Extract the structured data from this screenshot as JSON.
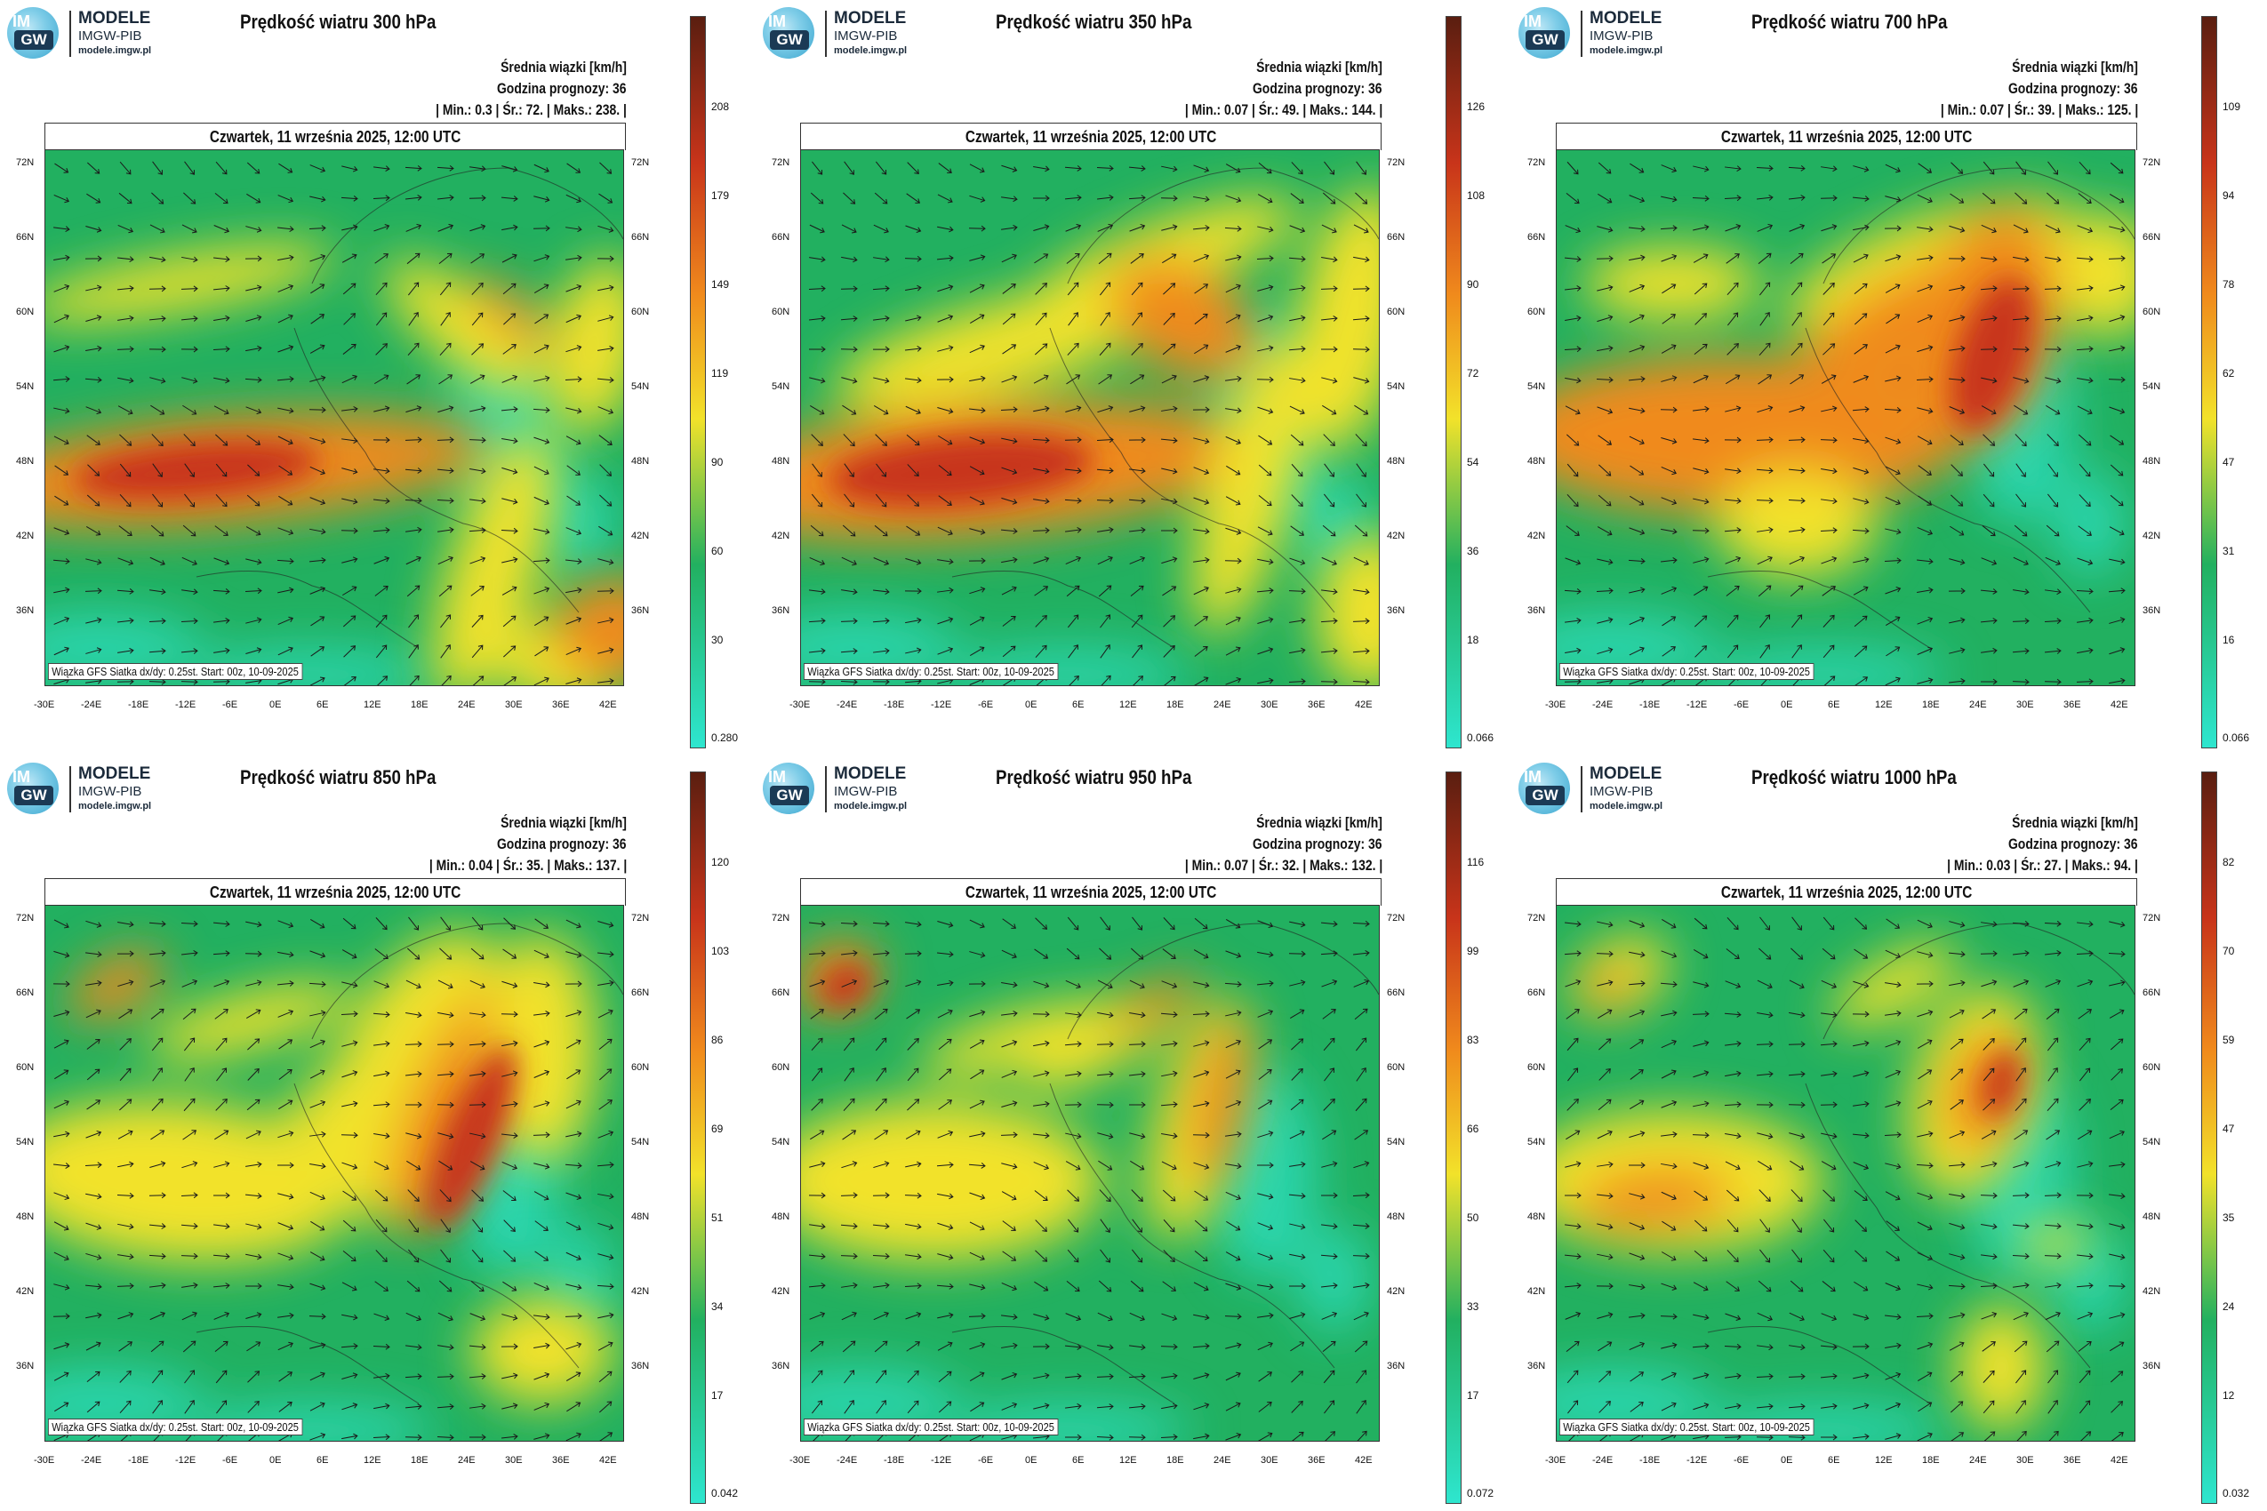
{
  "logo": {
    "line1": "MODELE",
    "line2": "IMGW-PIB",
    "line3": "modele.imgw.pl",
    "badge_top": "IM",
    "badge_bottom": "GW"
  },
  "common": {
    "subtitle": "Średnia wiązki [km/h]",
    "forecast_hour": "Godzina prognozy: 36",
    "date": "Czwartek, 11 września 2025, 12:00 UTC",
    "footer": "Wiązka GFS Siatka dx/dy: 0.25st. Start: 00z, 10-09-2025",
    "lat_labels": [
      "72N",
      "66N",
      "60N",
      "54N",
      "48N",
      "42N",
      "36N"
    ],
    "lon_labels": [
      "-30E",
      "-24E",
      "-18E",
      "-12E",
      "-6E",
      "0E",
      "6E",
      "12E",
      "18E",
      "24E",
      "30E",
      "36E",
      "42E"
    ]
  },
  "colors": {
    "cyan": "#2ee6cf",
    "green": "#22b060",
    "yellow": "#f2e22a",
    "orange": "#f08a1c",
    "red": "#c8341a",
    "darkred": "#5a1e10"
  },
  "panels": [
    {
      "title": "Prędkość wiatru 300 hPa",
      "stats": "| Min.:   0.3 | Śr.:   72. | Maks.:   238. |",
      "colorbar_labels": [
        "208",
        "179",
        "149",
        "119",
        "90",
        "60",
        "30",
        "0.280"
      ]
    },
    {
      "title": "Prędkość wiatru 350 hPa",
      "stats": "| Min.:   0.07 | Śr.:   49. | Maks.:   144. |",
      "colorbar_labels": [
        "126",
        "108",
        "90",
        "72",
        "54",
        "36",
        "18",
        "0.066"
      ]
    },
    {
      "title": "Prędkość wiatru 700 hPa",
      "stats": "| Min.:   0.07 | Śr.:   39. | Maks.:   125. |",
      "colorbar_labels": [
        "109",
        "94",
        "78",
        "62",
        "47",
        "31",
        "16",
        "0.066"
      ]
    },
    {
      "title": "Prędkość wiatru 850 hPa",
      "stats": "| Min.:   0.04 | Śr.:   35. | Maks.:   137. |",
      "colorbar_labels": [
        "120",
        "103",
        "86",
        "69",
        "51",
        "34",
        "17",
        "0.042"
      ]
    },
    {
      "title": "Prędkość wiatru 950 hPa",
      "stats": "| Min.:   0.07 | Śr.:   32. | Maks.:   132. |",
      "colorbar_labels": [
        "116",
        "99",
        "83",
        "66",
        "50",
        "33",
        "17",
        "0.072"
      ]
    },
    {
      "title": "Prędkość wiatru 1000 hPa",
      "stats": "| Min.:   0.03 | Śr.:   27. | Maks.:   94. |",
      "colorbar_labels": [
        "82",
        "70",
        "59",
        "47",
        "35",
        "24",
        "12",
        "0.032"
      ]
    }
  ]
}
